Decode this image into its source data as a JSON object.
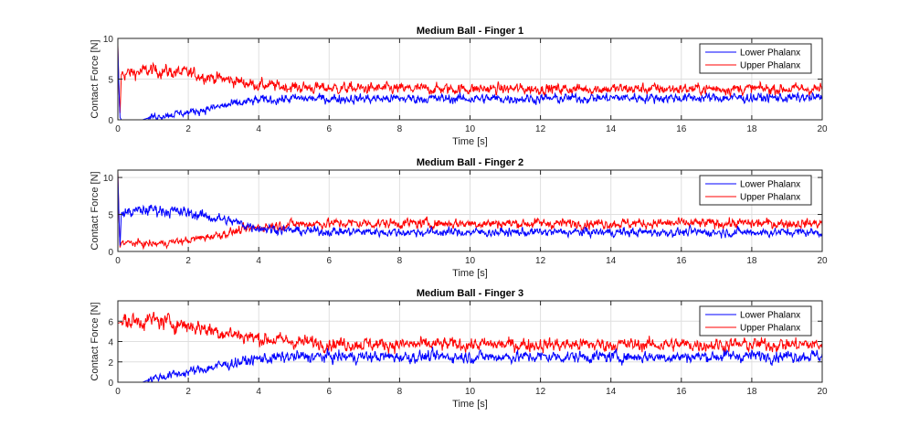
{
  "chart_data": [
    {
      "type": "line",
      "title": "Medium Ball - Finger 1",
      "xlabel": "Time [s]",
      "ylabel": "Contact Force [N]",
      "xlim": [
        0,
        20
      ],
      "ylim": [
        0,
        10
      ],
      "xticks": [
        0,
        2,
        4,
        6,
        8,
        10,
        12,
        14,
        16,
        18,
        20
      ],
      "yticks": [
        0,
        5,
        10
      ],
      "grid": true,
      "legend": "top-right",
      "series": [
        {
          "name": "Lower Phalanx",
          "color": "#0000ff",
          "x": [
            0,
            0.03,
            0.06,
            0.1,
            0.7,
            1,
            2,
            3,
            4,
            5,
            6,
            8,
            10,
            12,
            14,
            16,
            18,
            20
          ],
          "y": [
            9,
            4,
            0.3,
            0,
            0,
            0.4,
            0.9,
            1.7,
            2.4,
            2.6,
            2.6,
            2.6,
            2.6,
            2.6,
            2.7,
            2.7,
            2.7,
            2.7
          ]
        },
        {
          "name": "Upper Phalanx",
          "color": "#ff0000",
          "x": [
            0,
            0.03,
            0.06,
            0.1,
            1,
            2,
            3,
            4,
            5,
            6,
            8,
            10,
            12,
            14,
            16,
            18,
            20
          ],
          "y": [
            9.2,
            4,
            0.5,
            5.6,
            6.1,
            5.7,
            5,
            4.3,
            4,
            3.9,
            3.8,
            3.8,
            3.8,
            3.8,
            3.8,
            3.8,
            3.8
          ]
        }
      ]
    },
    {
      "type": "line",
      "title": "Medium Ball - Finger 2",
      "xlabel": "Time [s]",
      "ylabel": "Contact Force [N]",
      "xlim": [
        0,
        20
      ],
      "ylim": [
        0,
        11
      ],
      "xticks": [
        0,
        2,
        4,
        6,
        8,
        10,
        12,
        14,
        16,
        18,
        20
      ],
      "yticks": [
        0,
        5,
        10
      ],
      "grid": true,
      "legend": "top-right",
      "series": [
        {
          "name": "Lower Phalanx",
          "color": "#0000ff",
          "x": [
            0,
            0.03,
            0.06,
            0.1,
            1,
            2,
            3,
            4,
            5,
            6,
            8,
            10,
            12,
            14,
            16,
            18,
            20
          ],
          "y": [
            10.5,
            5,
            0.5,
            5.2,
            5.7,
            5.2,
            4.3,
            3.2,
            2.8,
            2.7,
            2.6,
            2.6,
            2.6,
            2.6,
            2.6,
            2.6,
            2.6
          ]
        },
        {
          "name": "Upper Phalanx",
          "color": "#ff0000",
          "x": [
            0,
            0.03,
            0.06,
            0.1,
            1,
            2,
            3,
            4,
            5,
            6,
            8,
            10,
            12,
            14,
            16,
            18,
            20
          ],
          "y": [
            10.8,
            5,
            0.5,
            1.2,
            1,
            1.5,
            2.4,
            3.3,
            3.7,
            3.8,
            3.8,
            3.8,
            3.8,
            3.8,
            3.8,
            3.8,
            3.8
          ]
        }
      ]
    },
    {
      "type": "line",
      "title": "Medium Ball - Finger 3",
      "xlabel": "Time [s]",
      "ylabel": "Contact Force [N]",
      "xlim": [
        0,
        20
      ],
      "ylim": [
        0,
        8
      ],
      "xticks": [
        0,
        2,
        4,
        6,
        8,
        10,
        12,
        14,
        16,
        18,
        20
      ],
      "yticks": [
        0,
        2,
        4,
        6
      ],
      "grid": true,
      "legend": "top-right",
      "series": [
        {
          "name": "Lower Phalanx",
          "color": "#0000ff",
          "x": [
            0,
            0.7,
            1,
            2,
            3,
            4,
            5,
            6,
            8,
            10,
            12,
            14,
            16,
            18,
            20
          ],
          "y": [
            0,
            0,
            0.4,
            1,
            1.7,
            2.3,
            2.5,
            2.5,
            2.5,
            2.5,
            2.5,
            2.5,
            2.5,
            2.6,
            2.6
          ]
        },
        {
          "name": "Upper Phalanx",
          "color": "#ff0000",
          "x": [
            0,
            0.1,
            1,
            2,
            3,
            4,
            5,
            6,
            8,
            10,
            12,
            14,
            16,
            18,
            20
          ],
          "y": [
            5.8,
            5.9,
            6.1,
            5.6,
            4.9,
            4.3,
            4,
            3.8,
            3.7,
            3.7,
            3.7,
            3.7,
            3.7,
            3.7,
            3.7
          ]
        }
      ]
    }
  ]
}
